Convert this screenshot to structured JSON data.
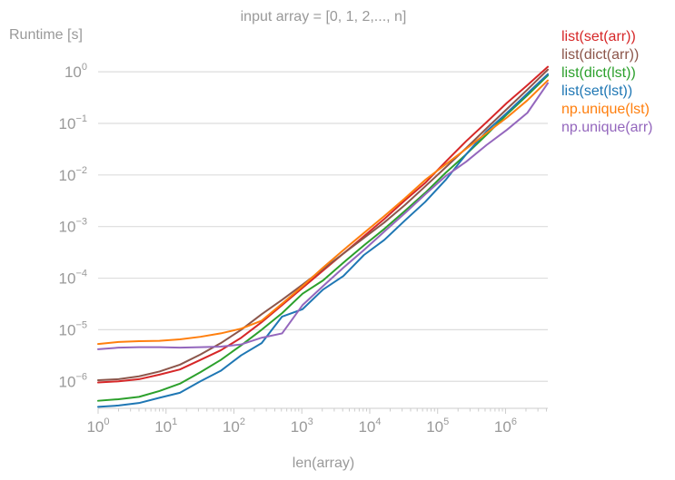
{
  "chart_data": {
    "type": "line",
    "title": "input array = [0, 1, 2,..., n]",
    "xlabel": "len(array)",
    "ylabel": "Runtime [s]",
    "xscale": "log",
    "yscale": "log",
    "xlim": [
      1,
      4194304
    ],
    "ylim": [
      3e-07,
      2
    ],
    "grid": "y-major",
    "legend_placement": "right, top-aligned",
    "x_ticks": [
      {
        "base": "10",
        "exp": "0",
        "value": 1
      },
      {
        "base": "10",
        "exp": "1",
        "value": 10
      },
      {
        "base": "10",
        "exp": "2",
        "value": 100
      },
      {
        "base": "10",
        "exp": "3",
        "value": 1000
      },
      {
        "base": "10",
        "exp": "4",
        "value": 10000
      },
      {
        "base": "10",
        "exp": "5",
        "value": 100000
      },
      {
        "base": "10",
        "exp": "6",
        "value": 1000000
      }
    ],
    "y_ticks": [
      {
        "base": "10",
        "exp": "0",
        "value": 1
      },
      {
        "base": "10",
        "exp": "−1",
        "value": 0.1
      },
      {
        "base": "10",
        "exp": "−2",
        "value": 0.01
      },
      {
        "base": "10",
        "exp": "−3",
        "value": 0.001
      },
      {
        "base": "10",
        "exp": "−4",
        "value": 0.0001
      },
      {
        "base": "10",
        "exp": "−5",
        "value": 1e-05
      },
      {
        "base": "10",
        "exp": "−6",
        "value": 1e-06
      }
    ],
    "x": [
      1,
      2,
      4,
      8,
      16,
      32,
      64,
      128,
      256,
      512,
      1024,
      2048,
      4096,
      8192,
      16384,
      32768,
      65536,
      131072,
      262144,
      524288,
      1048576,
      2097152,
      4194304
    ],
    "series": [
      {
        "name": "list(set(arr))",
        "color": "#d62728",
        "values": [
          9.5e-07,
          1e-06,
          1.1e-06,
          1.35e-06,
          1.7e-06,
          2.6e-06,
          4e-06,
          7e-06,
          1.4e-05,
          3e-05,
          6.5e-05,
          0.00014,
          0.0003,
          0.00065,
          0.0014,
          0.0032,
          0.007,
          0.018,
          0.045,
          0.105,
          0.25,
          0.55,
          1.25
        ]
      },
      {
        "name": "list(dict(arr))",
        "color": "#8c564b",
        "values": [
          1.05e-06,
          1.1e-06,
          1.25e-06,
          1.55e-06,
          2.1e-06,
          3.3e-06,
          5.5e-06,
          1e-05,
          2e-05,
          3.8e-05,
          7.5e-05,
          0.00015,
          0.0003,
          0.0006,
          0.0012,
          0.0026,
          0.006,
          0.014,
          0.033,
          0.08,
          0.19,
          0.45,
          1.1
        ]
      },
      {
        "name": "list(dict(lst))",
        "color": "#2ca02c",
        "values": [
          4.2e-07,
          4.5e-07,
          5e-07,
          6.5e-07,
          9e-07,
          1.5e-06,
          2.6e-06,
          5e-06,
          1e-05,
          2.1e-05,
          5e-05,
          9e-05,
          0.0002,
          0.00043,
          0.0009,
          0.002,
          0.0045,
          0.011,
          0.025,
          0.06,
          0.15,
          0.35,
          0.85
        ]
      },
      {
        "name": "list(set(lst))",
        "color": "#1f77b4",
        "values": [
          3.2e-07,
          3.4e-07,
          3.8e-07,
          4.8e-07,
          6e-07,
          1e-06,
          1.6e-06,
          3.2e-06,
          5.5e-06,
          1.8e-05,
          2.5e-05,
          6e-05,
          0.00011,
          0.00028,
          0.00055,
          0.0013,
          0.003,
          0.008,
          0.025,
          0.07,
          0.16,
          0.38,
          0.9
        ]
      },
      {
        "name": "np.unique(lst)",
        "color": "#ff7f0e",
        "values": [
          5.3e-06,
          5.8e-06,
          6e-06,
          6.1e-06,
          6.5e-06,
          7.3e-06,
          8.5e-06,
          1.05e-05,
          1.5e-05,
          3.2e-05,
          7e-05,
          0.00016,
          0.00035,
          0.00075,
          0.0016,
          0.0035,
          0.008,
          0.016,
          0.032,
          0.065,
          0.13,
          0.28,
          0.68
        ]
      },
      {
        "name": "np.unique(arr)",
        "color": "#9467bd",
        "values": [
          4.2e-06,
          4.5e-06,
          4.6e-06,
          4.6e-06,
          4.5e-06,
          4.6e-06,
          4.7e-06,
          5.2e-06,
          7e-06,
          8.5e-06,
          3e-05,
          7e-05,
          0.00016,
          0.00035,
          0.0008,
          0.0018,
          0.0042,
          0.0095,
          0.018,
          0.038,
          0.075,
          0.16,
          0.6
        ]
      }
    ]
  }
}
